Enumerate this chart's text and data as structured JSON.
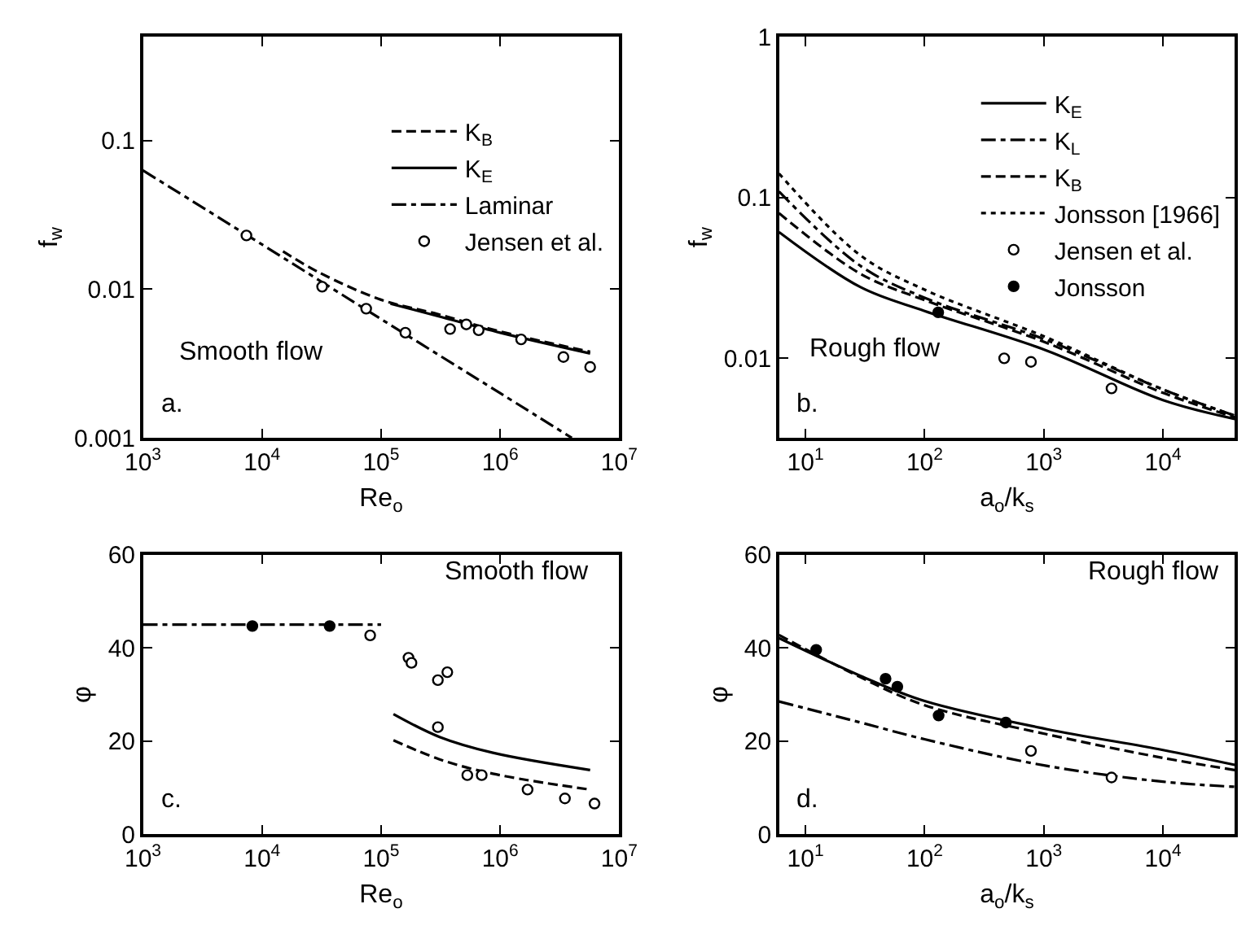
{
  "chart_data": [
    {
      "type": "line",
      "xlabel": "Re$_{o}$",
      "ylabel": "f$_{w}$",
      "log": "xy",
      "xlim": [
        1000,
        10000000
      ],
      "ylim": [
        0.001,
        0.5
      ],
      "xticks": [
        {
          "value": 1000,
          "label": "10$^{3}$"
        },
        {
          "value": 10000,
          "label": "10$^{4}$"
        },
        {
          "value": 100000,
          "label": "10$^{5}$"
        },
        {
          "value": 1000000,
          "label": "10$^{6}$"
        },
        {
          "value": 10000000,
          "label": "10$^{7}$"
        }
      ],
      "yticks": [
        0.001,
        0.01,
        0.1
      ],
      "grid": false,
      "legend": "top right",
      "annotations": [
        "Smooth flow",
        "a."
      ],
      "series": [
        {
          "name": "K$_{B}$",
          "line_style": "dashed",
          "color": "#000000",
          "x": [
            15000,
            30000,
            100000,
            300000,
            1000000,
            5700000
          ],
          "values": [
            0.018,
            0.013,
            0.0085,
            0.0068,
            0.0052,
            0.0038
          ]
        },
        {
          "name": "K$_{E}$",
          "line_style": "solid",
          "color": "#000000",
          "x": [
            120000,
            300000,
            1000000,
            5700000
          ],
          "values": [
            0.008,
            0.0066,
            0.0051,
            0.0037
          ]
        },
        {
          "name": "Laminar",
          "line_style": "dashdot",
          "color": "#000000",
          "x": [
            1000,
            10000,
            100000,
            1000000,
            4000000
          ],
          "values": [
            0.063,
            0.02,
            0.0063,
            0.002,
            0.001
          ]
        },
        {
          "name": "Jensen et al.",
          "type": "scatter",
          "marker": "circle",
          "color": "#ffffff",
          "x": [
            7400,
            32000,
            75000,
            160000,
            380000,
            520000,
            660000,
            1500000,
            3400000,
            5700000
          ],
          "values": [
            0.023,
            0.0104,
            0.0074,
            0.0051,
            0.0054,
            0.0058,
            0.0053,
            0.0046,
            0.0035,
            0.003
          ]
        }
      ]
    },
    {
      "type": "line",
      "xlabel": "a$_{o}$/k$_{s}$",
      "ylabel": "f$_{w}$",
      "log": "xy",
      "xlim": [
        6,
        40000
      ],
      "ylim": [
        0.0032,
        1
      ],
      "xticks": [
        {
          "value": 10,
          "label": "10$^{1}$"
        },
        {
          "value": 100,
          "label": "10$^{2}$"
        },
        {
          "value": 1000,
          "label": "10$^{3}$"
        },
        {
          "value": 10000,
          "label": "10$^{4}$"
        }
      ],
      "yticks": [
        0.01,
        0.1,
        1
      ],
      "grid": false,
      "legend": "top right",
      "annotations": [
        "Rough flow",
        "b."
      ],
      "series": [
        {
          "name": "K$_{E}$",
          "line_style": "solid",
          "color": "#000000",
          "x": [
            6,
            29,
            100,
            1050,
            10000,
            40000
          ],
          "values": [
            0.061,
            0.0277,
            0.0197,
            0.0112,
            0.0055,
            0.0042
          ]
        },
        {
          "name": "K$_{L}$",
          "line_style": "dashdot",
          "color": "#000000",
          "x": [
            6,
            29,
            100,
            1050,
            10000,
            40000
          ],
          "values": [
            0.109,
            0.0375,
            0.0238,
            0.013,
            0.0064,
            0.0044
          ]
        },
        {
          "name": "K$_{B}$",
          "line_style": "dashed",
          "color": "#000000",
          "x": [
            6,
            29,
            100,
            1050,
            10000,
            40000
          ],
          "values": [
            0.08,
            0.0335,
            0.023,
            0.0125,
            0.0061,
            0.0043
          ]
        },
        {
          "name": "Jonsson [1966]",
          "line_style": "dotted",
          "color": "#000000",
          "x": [
            6,
            29,
            100,
            1050,
            10000,
            40000
          ],
          "values": [
            0.141,
            0.0436,
            0.0267,
            0.0135,
            0.0064,
            0.0044
          ]
        },
        {
          "name": "Jensen et al.",
          "type": "scatter",
          "marker": "circle",
          "color": "#ffffff",
          "x": [
            465,
            780,
            3700
          ],
          "values": [
            0.01,
            0.0095,
            0.0065
          ]
        },
        {
          "name": "Jonsson",
          "type": "scatter",
          "marker": "circle",
          "color": "#000000",
          "x": [
            130
          ],
          "values": [
            0.0193
          ]
        }
      ]
    },
    {
      "type": "line",
      "xlabel": "Re$_{o}$",
      "ylabel": "φ",
      "log": "x",
      "xlim": [
        1000,
        10000000
      ],
      "ylim": [
        0,
        60
      ],
      "xticks": [
        {
          "value": 1000,
          "label": "10$^{3}$"
        },
        {
          "value": 10000,
          "label": "10$^{4}$"
        },
        {
          "value": 100000,
          "label": "10$^{5}$"
        },
        {
          "value": 1000000,
          "label": "10$^{6}$"
        },
        {
          "value": 10000000,
          "label": "10$^{7}$"
        }
      ],
      "yticks": [
        0,
        20,
        40,
        60
      ],
      "grid": false,
      "annotations": [
        "Smooth flow",
        "c."
      ],
      "series": [
        {
          "line_style": "dashdot",
          "color": "#000000",
          "x": [
            1000,
            100000
          ],
          "values": [
            45,
            45
          ]
        },
        {
          "line_style": "solid",
          "color": "#000000",
          "x": [
            127000,
            310000,
            870000,
            5700000
          ],
          "values": [
            25.8,
            20.9,
            17.5,
            13.8
          ]
        },
        {
          "line_style": "dashed",
          "color": "#000000",
          "x": [
            127000,
            310000,
            870000,
            5700000
          ],
          "values": [
            20.2,
            16.1,
            13.0,
            9.6
          ]
        },
        {
          "type": "scatter",
          "marker": "circle",
          "color": "#000000",
          "x": [
            8300,
            37000
          ],
          "values": [
            44.7,
            44.7
          ]
        },
        {
          "type": "scatter",
          "marker": "circle",
          "color": "#ffffff",
          "x": [
            81000,
            170000,
            180000,
            300000,
            360000,
            300000,
            530000,
            700000,
            1700000,
            3500000,
            6200000
          ],
          "values": [
            42.7,
            37.9,
            36.8,
            33.1,
            34.8,
            23.0,
            12.7,
            12.7,
            9.6,
            7.7,
            6.6
          ]
        }
      ]
    },
    {
      "type": "line",
      "xlabel": "a$_{o}$/k$_{s}$",
      "ylabel": "φ",
      "log": "x",
      "xlim": [
        6,
        40000
      ],
      "ylim": [
        0,
        60
      ],
      "xticks": [
        {
          "value": 10,
          "label": "10$^{1}$"
        },
        {
          "value": 100,
          "label": "10$^{2}$"
        },
        {
          "value": 1000,
          "label": "10$^{3}$"
        },
        {
          "value": 10000,
          "label": "10$^{4}$"
        }
      ],
      "yticks": [
        0,
        20,
        40,
        60
      ],
      "grid": false,
      "annotations": [
        "Rough flow",
        "d."
      ],
      "series": [
        {
          "line_style": "solid",
          "color": "#000000",
          "x": [
            6,
            29,
            100,
            1050,
            10000,
            40000
          ],
          "values": [
            42.1,
            34.0,
            28.6,
            22.6,
            18.1,
            14.9
          ]
        },
        {
          "line_style": "dashed",
          "color": "#000000",
          "x": [
            6,
            29,
            100,
            1050,
            10000,
            40000
          ],
          "values": [
            42.8,
            33.7,
            27.7,
            21.5,
            16.4,
            13.8
          ]
        },
        {
          "line_style": "dashdot",
          "color": "#000000",
          "x": [
            6,
            29,
            100,
            1050,
            10000,
            40000
          ],
          "values": [
            28.5,
            24.0,
            20.4,
            14.7,
            11.3,
            10.2
          ]
        },
        {
          "type": "scatter",
          "marker": "circle",
          "color": "#000000",
          "x": [
            12.3,
            47,
            59,
            131,
            480
          ],
          "values": [
            39.6,
            33.4,
            31.7,
            25.5,
            24.0
          ]
        },
        {
          "type": "scatter",
          "marker": "circle",
          "color": "#ffffff",
          "x": [
            780,
            3700
          ],
          "values": [
            17.9,
            12.2
          ]
        }
      ]
    }
  ]
}
